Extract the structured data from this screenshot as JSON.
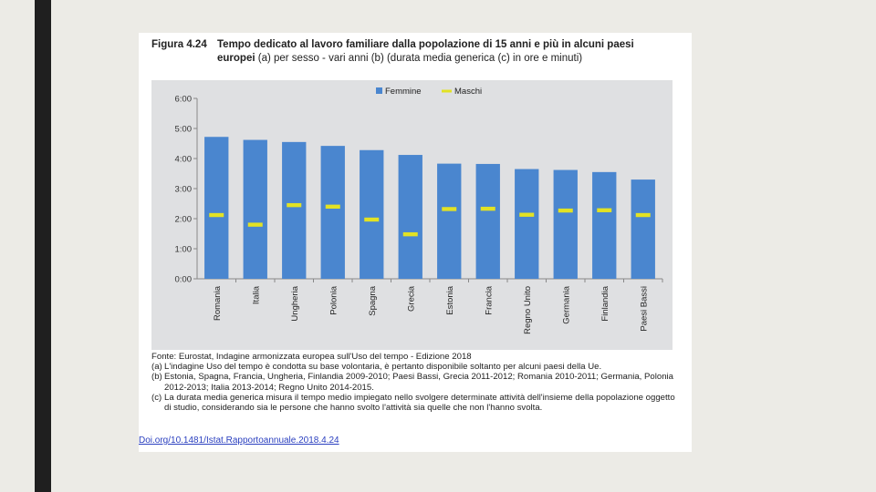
{
  "caption": {
    "figure_label": "Figura 4.24",
    "title_bold": "Tempo dedicato al lavoro familiare dalla popolazione di 15 anni e più in alcuni paesi",
    "title_rest_bold": "europei",
    "title_rest": " (a) per sesso - vari anni (b) (durata media generica (c) in ore e minuti)"
  },
  "chart_data": {
    "type": "bar",
    "title": "",
    "xlabel": "",
    "ylabel": "",
    "ylim": [
      0,
      6
    ],
    "y_ticks": [
      "0:00",
      "1:00",
      "2:00",
      "3:00",
      "4:00",
      "5:00",
      "6:00"
    ],
    "categories": [
      "Romania",
      "Italia",
      "Ungheria",
      "Polonia",
      "Spagna",
      "Grecia",
      "Estonia",
      "Francia",
      "Regno Unito",
      "Germania",
      "Finlandia",
      "Paesi Bassi"
    ],
    "series": [
      {
        "name": "Femmine",
        "kind": "bar",
        "color": "#4a86cf",
        "values": [
          4.72,
          4.62,
          4.55,
          4.42,
          4.28,
          4.12,
          3.83,
          3.82,
          3.65,
          3.62,
          3.55,
          3.3
        ]
      },
      {
        "name": "Maschi",
        "kind": "marker",
        "color": "#e2e224",
        "values": [
          2.12,
          1.8,
          2.45,
          2.4,
          1.97,
          1.48,
          2.32,
          2.33,
          2.13,
          2.27,
          2.28,
          2.12
        ]
      }
    ],
    "legend": "top-center"
  },
  "notes": {
    "source": "Fonte: Eurostat, Indagine armonizzata europea sull'Uso del tempo - Edizione 2018",
    "a_label": "(a)",
    "a_text": "L'indagine Uso del tempo è condotta su base volontaria, è pertanto disponibile soltanto per alcuni paesi della Ue.",
    "b_label": "(b)",
    "b_text": "Estonia, Spagna, Francia, Ungheria, Finlandia 2009-2010; Paesi Bassi, Grecia 2011-2012; Romania 2010-2011; Germania, Polonia 2012-2013; Italia 2013-2014; Regno Unito 2014-2015.",
    "c_label": "(c)",
    "c_text": "La durata media generica misura il tempo medio impiegato nello svolgere determinate attività dell'insieme della popolazione oggetto di studio, considerando sia le persone che hanno svolto l'attività sia quelle che non l'hanno svolta."
  },
  "link": "Doi.org/10.1481/Istat.Rapportoannuale.2018.4.24"
}
